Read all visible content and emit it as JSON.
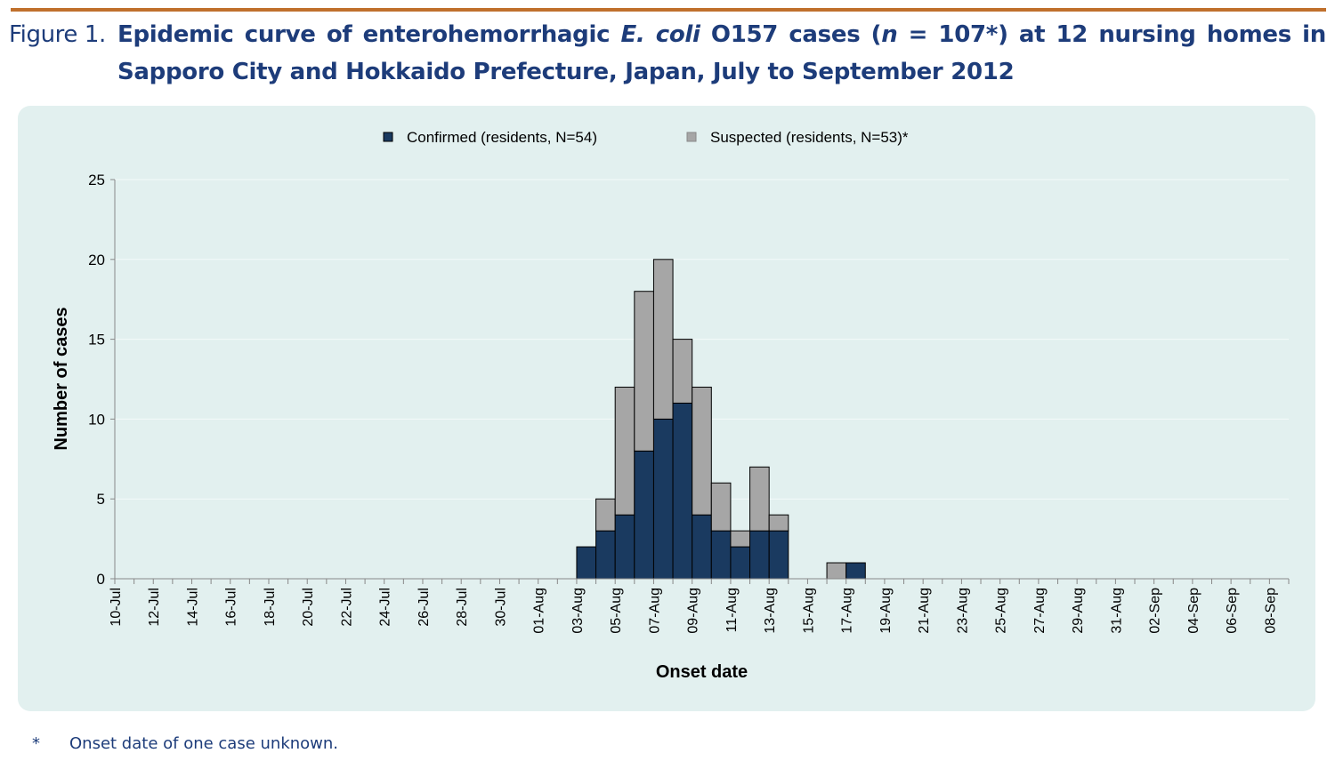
{
  "figure": {
    "label": "Figure 1.",
    "title_part1": "Epidemic curve of enterohemorrhagic ",
    "title_italic1": "E. coli",
    "title_part2": " O157 cases (",
    "title_italic2": "n",
    "title_part3": " = 107*) at 12 nursing homes in Sapporo City and Hokkaido Prefecture, Japan, July to September 2012"
  },
  "footnote": {
    "mark": "*",
    "text": "Onset date of one case unknown."
  },
  "colors": {
    "confirmed": "#1a3a60",
    "suspected": "#a6a6a6",
    "panel": "#e2f0ef",
    "title": "#1d3c7a",
    "rule": "#c0702c"
  },
  "chart_data": {
    "type": "bar",
    "stacked": true,
    "title": "",
    "xlabel": "Onset date",
    "ylabel": "Number of cases",
    "ylim": [
      0,
      25
    ],
    "yticks": [
      0,
      5,
      10,
      15,
      20,
      25
    ],
    "grid": true,
    "legend_position": "top-center",
    "categories": [
      "10-Jul",
      "11-Jul",
      "12-Jul",
      "13-Jul",
      "14-Jul",
      "15-Jul",
      "16-Jul",
      "17-Jul",
      "18-Jul",
      "19-Jul",
      "20-Jul",
      "21-Jul",
      "22-Jul",
      "23-Jul",
      "24-Jul",
      "25-Jul",
      "26-Jul",
      "27-Jul",
      "28-Jul",
      "29-Jul",
      "30-Jul",
      "31-Jul",
      "01-Aug",
      "02-Aug",
      "03-Aug",
      "04-Aug",
      "05-Aug",
      "06-Aug",
      "07-Aug",
      "08-Aug",
      "09-Aug",
      "10-Aug",
      "11-Aug",
      "12-Aug",
      "13-Aug",
      "14-Aug",
      "15-Aug",
      "16-Aug",
      "17-Aug",
      "18-Aug",
      "19-Aug",
      "20-Aug",
      "21-Aug",
      "22-Aug",
      "23-Aug",
      "24-Aug",
      "25-Aug",
      "26-Aug",
      "27-Aug",
      "28-Aug",
      "29-Aug",
      "30-Aug",
      "31-Aug",
      "01-Sep",
      "02-Sep",
      "03-Sep",
      "04-Sep",
      "05-Sep",
      "06-Sep",
      "07-Sep",
      "08-Sep"
    ],
    "tick_labels": [
      "10-Jul",
      "12-Jul",
      "14-Jul",
      "16-Jul",
      "18-Jul",
      "20-Jul",
      "22-Jul",
      "24-Jul",
      "26-Jul",
      "28-Jul",
      "30-Jul",
      "01-Aug",
      "03-Aug",
      "05-Aug",
      "07-Aug",
      "09-Aug",
      "11-Aug",
      "13-Aug",
      "15-Aug",
      "17-Aug",
      "19-Aug",
      "21-Aug",
      "23-Aug",
      "25-Aug",
      "27-Aug",
      "29-Aug",
      "31-Aug",
      "02-Sep",
      "04-Sep",
      "06-Sep",
      "08-Sep"
    ],
    "series": [
      {
        "name": "Confirmed (residents, N=54)",
        "key": "confirmed",
        "values": [
          0,
          0,
          0,
          0,
          0,
          0,
          0,
          0,
          0,
          0,
          0,
          0,
          0,
          0,
          0,
          0,
          0,
          0,
          0,
          0,
          0,
          0,
          0,
          0,
          2,
          3,
          4,
          8,
          10,
          11,
          4,
          3,
          2,
          3,
          3,
          0,
          0,
          0,
          1,
          0,
          0,
          0,
          0,
          0,
          0,
          0,
          0,
          0,
          0,
          0,
          0,
          0,
          0,
          0,
          0,
          0,
          0,
          0,
          0,
          0,
          0
        ]
      },
      {
        "name": "Suspected (residents, N=53)*",
        "key": "suspected",
        "values": [
          0,
          0,
          0,
          0,
          0,
          0,
          0,
          0,
          0,
          0,
          0,
          0,
          0,
          0,
          0,
          0,
          0,
          0,
          0,
          0,
          0,
          0,
          0,
          0,
          0,
          2,
          8,
          10,
          10,
          4,
          8,
          3,
          1,
          4,
          1,
          0,
          0,
          1,
          0,
          0,
          0,
          0,
          0,
          0,
          0,
          0,
          0,
          0,
          0,
          0,
          0,
          0,
          0,
          0,
          0,
          0,
          0,
          0,
          0,
          0,
          0
        ]
      }
    ]
  }
}
